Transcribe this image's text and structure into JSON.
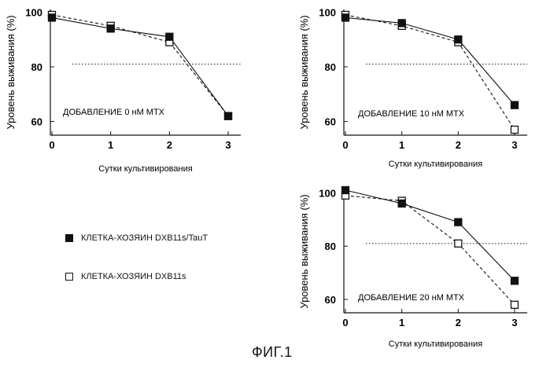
{
  "figure_caption": "ФИГ.1",
  "legend": [
    {
      "label": "КЛЕТКА-ХОЗЯИН DXB11s/TauT",
      "marker": "filled-square"
    },
    {
      "label": "КЛЕТКА-ХОЗЯИН DXB11s",
      "marker": "open-square"
    }
  ],
  "chart_data": [
    {
      "type": "line",
      "annotation": "ДОБАВЛЕНИЕ 0 нМ МТХ",
      "xlabel": "Сутки культивирования",
      "ylabel": "Уровень выживания (%)",
      "x": [
        0,
        1,
        2,
        3
      ],
      "xticks": [
        "0",
        "1",
        "2",
        "3"
      ],
      "yticks": [
        "60",
        "80",
        "100"
      ],
      "ylim": [
        55,
        101
      ],
      "reference_line": 81,
      "series": [
        {
          "name": "КЛЕТКА-ХОЗЯИН DXB11s/TauT",
          "marker": "filled",
          "line": "solid",
          "values": [
            98,
            94,
            91,
            62
          ]
        },
        {
          "name": "КЛЕТКА-ХОЗЯИН DXB11s",
          "marker": "open",
          "line": "dashed",
          "values": [
            99,
            95,
            89,
            62
          ]
        }
      ]
    },
    {
      "type": "line",
      "annotation": "ДОБАВЛЕНИЕ 10 нМ МТХ",
      "xlabel": "Сутки культивирования",
      "ylabel": "Уровень выживания (%)",
      "x": [
        0,
        1,
        2,
        3
      ],
      "xticks": [
        "0",
        "1",
        "2",
        "3"
      ],
      "yticks": [
        "60",
        "80",
        "100"
      ],
      "ylim": [
        55,
        101
      ],
      "reference_line": 81,
      "series": [
        {
          "name": "КЛЕТКА-ХОЗЯИН DXB11s/TauT",
          "marker": "filled",
          "line": "solid",
          "values": [
            98,
            96,
            90,
            66
          ]
        },
        {
          "name": "КЛЕТКА-ХОЗЯИН DXB11s",
          "marker": "open",
          "line": "dashed",
          "values": [
            99,
            95,
            89,
            57
          ]
        }
      ]
    },
    {
      "type": "line",
      "annotation": "ДОБАВЛЕНИЕ 20 нМ МТХ",
      "xlabel": "Сутки культивирования",
      "ylabel": "Уровень выживания (%)",
      "x": [
        0,
        1,
        2,
        3
      ],
      "xticks": [
        "0",
        "1",
        "2",
        "3"
      ],
      "yticks": [
        "60",
        "80",
        "100"
      ],
      "ylim": [
        55,
        101
      ],
      "reference_line": 81,
      "series": [
        {
          "name": "КЛЕТКА-ХОЗЯИН DXB11s/TauT",
          "marker": "filled",
          "line": "solid",
          "values": [
            101,
            96,
            89,
            67
          ]
        },
        {
          "name": "КЛЕТКА-ХОЗЯИН DXB11s",
          "marker": "open",
          "line": "dashed",
          "values": [
            99,
            97,
            81,
            58
          ]
        }
      ]
    }
  ]
}
